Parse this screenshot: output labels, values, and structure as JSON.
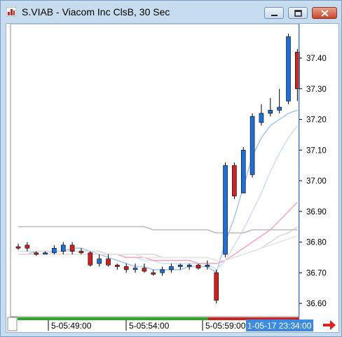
{
  "window": {
    "title": "S.VIAB - Viacom Inc ClsB, 30 Sec",
    "icons": {
      "app": "chart-app-icon",
      "minimize": "minimize-icon",
      "maximize": "maximize-icon",
      "close": "close-icon"
    }
  },
  "chart": {
    "price_ticks": [
      "37.40",
      "37.30",
      "37.20",
      "37.10",
      "37.00",
      "36.90",
      "36.80",
      "36.70",
      "36.60"
    ],
    "time_ticks": [
      "5-05:49:00",
      "5-05:54:00",
      "5-05:59:00"
    ],
    "cursor_label": "1-05-17 23:34:00",
    "scroll_right_icon": "arrow-right-icon",
    "colors": {
      "up": "#1f6fd6",
      "down": "#cc2222",
      "cursor": "#3d7fd6",
      "label_bg": "#3d8be0"
    }
  },
  "chart_data": {
    "type": "candlestick",
    "ylim": [
      36.57,
      37.48
    ],
    "candles": [
      {
        "o": 36.785,
        "h": 36.795,
        "l": 36.775,
        "c": 36.78
      },
      {
        "o": 36.79,
        "h": 36.8,
        "l": 36.77,
        "c": 36.78
      },
      {
        "o": 36.765,
        "h": 36.77,
        "l": 36.755,
        "c": 36.76
      },
      {
        "o": 36.765,
        "h": 36.77,
        "l": 36.76,
        "c": 36.765
      },
      {
        "o": 36.765,
        "h": 36.79,
        "l": 36.76,
        "c": 36.78
      },
      {
        "o": 36.77,
        "h": 36.8,
        "l": 36.76,
        "c": 36.79
      },
      {
        "o": 36.79,
        "h": 36.8,
        "l": 36.76,
        "c": 36.77
      },
      {
        "o": 36.77,
        "h": 36.78,
        "l": 36.76,
        "c": 36.765
      },
      {
        "o": 36.765,
        "h": 36.77,
        "l": 36.72,
        "c": 36.725
      },
      {
        "o": 36.73,
        "h": 36.76,
        "l": 36.72,
        "c": 36.745
      },
      {
        "o": 36.745,
        "h": 36.76,
        "l": 36.72,
        "c": 36.725
      },
      {
        "o": 36.725,
        "h": 36.73,
        "l": 36.71,
        "c": 36.72
      },
      {
        "o": 36.72,
        "h": 36.73,
        "l": 36.7,
        "c": 36.71
      },
      {
        "o": 36.71,
        "h": 36.73,
        "l": 36.7,
        "c": 36.715
      },
      {
        "o": 36.715,
        "h": 36.73,
        "l": 36.7,
        "c": 36.705
      },
      {
        "o": 36.7,
        "h": 36.71,
        "l": 36.69,
        "c": 36.695
      },
      {
        "o": 36.7,
        "h": 36.72,
        "l": 36.69,
        "c": 36.71
      },
      {
        "o": 36.71,
        "h": 36.73,
        "l": 36.7,
        "c": 36.72
      },
      {
        "o": 36.72,
        "h": 36.73,
        "l": 36.71,
        "c": 36.725
      },
      {
        "o": 36.72,
        "h": 36.73,
        "l": 36.71,
        "c": 36.725
      },
      {
        "o": 36.725,
        "h": 36.73,
        "l": 36.71,
        "c": 36.715
      },
      {
        "o": 36.72,
        "h": 36.74,
        "l": 36.71,
        "c": 36.725
      },
      {
        "o": 36.7,
        "h": 36.71,
        "l": 36.6,
        "c": 36.61
      },
      {
        "o": 36.76,
        "h": 37.06,
        "l": 36.75,
        "c": 37.05
      },
      {
        "o": 37.05,
        "h": 37.06,
        "l": 36.94,
        "c": 36.95
      },
      {
        "o": 36.96,
        "h": 37.11,
        "l": 36.96,
        "c": 37.1
      },
      {
        "o": 37.02,
        "h": 37.22,
        "l": 37.01,
        "c": 37.21
      },
      {
        "o": 37.19,
        "h": 37.25,
        "l": 37.18,
        "c": 37.22
      },
      {
        "o": 37.22,
        "h": 37.27,
        "l": 37.21,
        "c": 37.23
      },
      {
        "o": 37.23,
        "h": 37.3,
        "l": 37.22,
        "c": 37.24
      },
      {
        "o": 37.26,
        "h": 37.48,
        "l": 37.25,
        "c": 37.47
      },
      {
        "o": 37.42,
        "h": 37.43,
        "l": 37.26,
        "c": 37.3
      }
    ],
    "moving_averages": [
      {
        "color": "#a9c8ea",
        "values": [
          36.76,
          36.76,
          36.77,
          36.77,
          36.77,
          36.77,
          36.78,
          36.78,
          36.77,
          36.76,
          36.75,
          36.74,
          36.73,
          36.72,
          36.72,
          36.71,
          36.71,
          36.71,
          36.71,
          36.72,
          36.72,
          36.72,
          36.7,
          36.8,
          36.88,
          36.98,
          37.08,
          37.14,
          37.18,
          37.2,
          37.22,
          37.23
        ]
      },
      {
        "color": "#cfe0f3",
        "values": [
          36.76,
          36.76,
          36.76,
          36.76,
          36.77,
          36.77,
          36.77,
          36.77,
          36.77,
          36.76,
          36.76,
          36.76,
          36.75,
          36.75,
          36.74,
          36.74,
          36.73,
          36.73,
          36.73,
          36.73,
          36.73,
          36.73,
          36.71,
          36.74,
          36.79,
          36.84,
          36.9,
          36.96,
          37.03,
          37.09,
          37.14,
          37.18
        ]
      },
      {
        "color": "#f6a9bd",
        "values": [
          36.76,
          36.76,
          36.76,
          36.76,
          36.76,
          36.76,
          36.76,
          36.76,
          36.76,
          36.76,
          36.76,
          36.76,
          36.75,
          36.75,
          36.75,
          36.74,
          36.74,
          36.74,
          36.74,
          36.74,
          36.73,
          36.73,
          36.73,
          36.74,
          36.76,
          36.78,
          36.8,
          36.82,
          36.84,
          36.87,
          36.9,
          36.93
        ]
      },
      {
        "color": "#d9d9d9",
        "values": [
          36.77,
          36.77,
          36.77,
          36.77,
          36.77,
          36.77,
          36.77,
          36.77,
          36.77,
          36.77,
          36.76,
          36.76,
          36.76,
          36.76,
          36.76,
          36.76,
          36.75,
          36.75,
          36.75,
          36.75,
          36.75,
          36.75,
          36.74,
          36.74,
          36.75,
          36.76,
          36.77,
          36.78,
          36.8,
          36.82,
          36.83,
          36.85
        ]
      },
      {
        "color": "#e6e6e6",
        "values": [
          36.76,
          36.76,
          36.76,
          36.76,
          36.76,
          36.76,
          36.76,
          36.76,
          36.76,
          36.76,
          36.76,
          36.76,
          36.76,
          36.76,
          36.75,
          36.75,
          36.75,
          36.75,
          36.75,
          36.75,
          36.75,
          36.75,
          36.74,
          36.74,
          36.75,
          36.76,
          36.77,
          36.78,
          36.79,
          36.8,
          36.81,
          36.82
        ]
      },
      {
        "color": "#bdbdbd",
        "values": [
          36.85,
          36.85,
          36.85,
          36.85,
          36.85,
          36.85,
          36.85,
          36.85,
          36.85,
          36.85,
          36.85,
          36.85,
          36.85,
          36.85,
          36.85,
          36.84,
          36.84,
          36.84,
          36.84,
          36.84,
          36.84,
          36.84,
          36.83,
          36.83,
          36.83,
          36.83,
          36.84,
          36.84,
          36.84,
          36.84,
          36.84,
          36.84
        ]
      }
    ]
  }
}
